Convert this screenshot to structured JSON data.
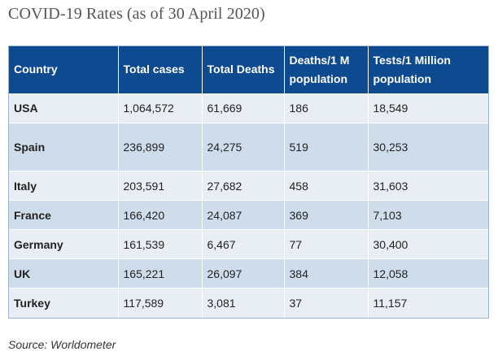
{
  "title": "COVID-19 Rates (as of 30 April 2020)",
  "table": {
    "headers": {
      "country": "Country",
      "total_cases": "Total cases",
      "total_deaths": "Total Deaths",
      "deaths_line1": "Deaths/1 M",
      "deaths_line2": "population",
      "tests_line1": "Tests/1 Million",
      "tests_line2": "population"
    },
    "rows": [
      {
        "country": "USA",
        "total_cases": "1,064,572",
        "total_deaths": "61,669",
        "deaths_per_m": "186",
        "tests_per_m": "18,549"
      },
      {
        "country": "Spain",
        "total_cases": "236,899",
        "total_deaths": "24,275",
        "deaths_per_m": "519",
        "tests_per_m": "30,253"
      },
      {
        "country": "Italy",
        "total_cases": "203,591",
        "total_deaths": "27,682",
        "deaths_per_m": "458",
        "tests_per_m": "31,603"
      },
      {
        "country": "France",
        "total_cases": "166,420",
        "total_deaths": "24,087",
        "deaths_per_m": "369",
        "tests_per_m": "7,103"
      },
      {
        "country": "Germany",
        "total_cases": "161,539",
        "total_deaths": "6,467",
        "deaths_per_m": "77",
        "tests_per_m": "30,400"
      },
      {
        "country": "UK",
        "total_cases": "165,221",
        "total_deaths": "26,097",
        "deaths_per_m": "384",
        "tests_per_m": "12,058"
      },
      {
        "country": "Turkey",
        "total_cases": "117,589",
        "total_deaths": "3,081",
        "deaths_per_m": "37",
        "tests_per_m": "11,157"
      }
    ]
  },
  "source": "Source: Worldometer",
  "colors": {
    "header_bg": "#0e4a8f",
    "row_light": "#e9eef5",
    "row_dark": "#cfdcec"
  }
}
